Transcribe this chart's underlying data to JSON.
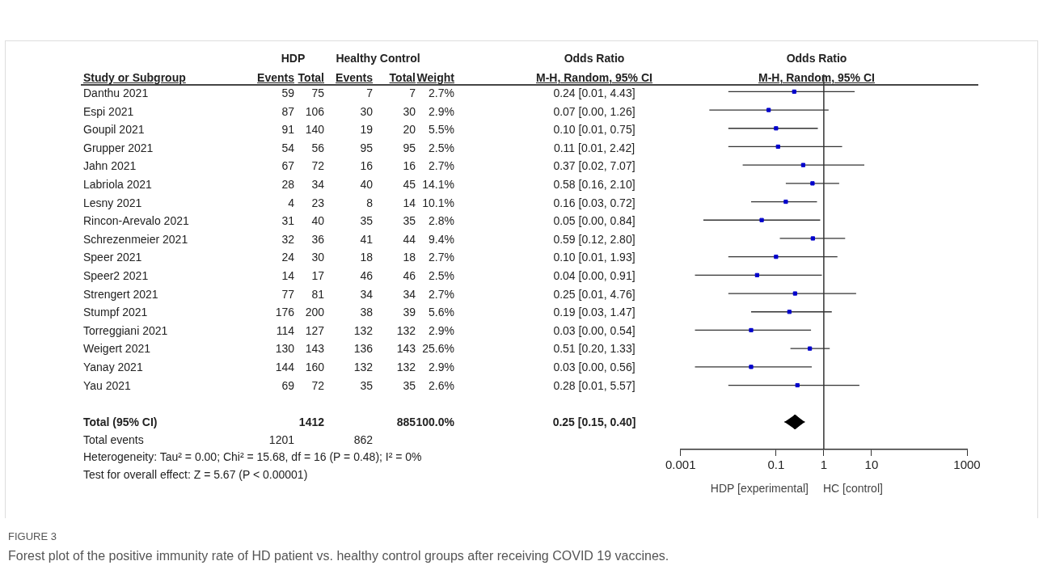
{
  "chart_data": [
    {
      "type": "other",
      "ylabel": "Study or Subgroup",
      "categories": [
        "Danthu 2021",
        "Espi 2021",
        "Goupil 2021",
        "Grupper 2021",
        "Jahn 2021",
        "Labriola 2021",
        "Lesny 2021",
        "Rincon-Arevalo 2021",
        "Schrezenmeier 2021",
        "Speer 2021",
        "Speer2 2021",
        "Strengert 2021",
        "Stumpf 2021",
        "Torreggiani 2021",
        "Weigert 2021",
        "Yanay 2021",
        "Yau 2021",
        null,
        "Total (95% CI)",
        "Total events"
      ],
      "data_labels": true,
      "series": [
        {
          "name": "Events",
          "values": [
            59,
            87,
            91,
            54,
            67,
            28,
            4,
            31,
            32,
            24,
            14,
            77,
            176,
            114,
            130,
            144,
            69,
            null,
            null,
            1201
          ]
        },
        {
          "name": "Total",
          "values": [
            75,
            106,
            140,
            56,
            72,
            34,
            23,
            40,
            36,
            30,
            17,
            81,
            200,
            127,
            143,
            160,
            72,
            null,
            1412,
            null
          ]
        },
        {
          "name": "Events",
          "values": [
            7,
            30,
            19,
            95,
            16,
            40,
            8,
            35,
            41,
            18,
            46,
            34,
            38,
            132,
            136,
            132,
            35,
            null,
            null,
            862
          ]
        },
        {
          "name": "Total",
          "values": [
            7,
            30,
            20,
            95,
            16,
            45,
            14,
            35,
            44,
            18,
            46,
            34,
            39,
            132,
            143,
            132,
            35,
            null,
            885,
            null
          ]
        },
        {
          "name": "Weight",
          "values": [
            2.7,
            2.9,
            5.5,
            2.5,
            2.7,
            14.1,
            10.1,
            2.8,
            9.4,
            2.7,
            2.5,
            2.7,
            5.6,
            2.9,
            25.6,
            2.9,
            2.6,
            null,
            100.0,
            null
          ],
          "value_labels": [
            "2.7%",
            "2.9%",
            "5.5%",
            "2.5%",
            "2.7%",
            "14.1%",
            "10.1%",
            "2.8%",
            "9.4%",
            "2.7%",
            "2.5%",
            "2.7%",
            "5.6%",
            "2.9%",
            "25.6%",
            "2.9%",
            "2.6%",
            null,
            "100.0%",
            null
          ]
        },
        {
          "name": "M-H, Random, 95% CI",
          "values": [
            0.24,
            0.07,
            0.1,
            0.11,
            0.37,
            0.58,
            0.16,
            0.05,
            0.59,
            0.1,
            0.04,
            0.25,
            0.19,
            0.03,
            0.51,
            0.03,
            0.28,
            null,
            0.25,
            null
          ],
          "value_labels": [
            "0.24 [0.01, 4.43]",
            "0.07 [0.00, 1.26]",
            "0.10 [0.01, 0.75]",
            "0.11 [0.01, 2.42]",
            "0.37 [0.02, 7.07]",
            "0.58 [0.16, 2.10]",
            "0.16 [0.03, 0.72]",
            "0.05 [0.00, 0.84]",
            "0.59 [0.12, 2.80]",
            "0.10 [0.01, 1.93]",
            "0.04 [0.00, 0.91]",
            "0.25 [0.01, 4.76]",
            "0.19 [0.03, 1.47]",
            "0.03 [0.00, 0.54]",
            "0.51 [0.20, 1.33]",
            "0.03 [0.00, 0.56]",
            "0.28 [0.01, 5.57]",
            null,
            "0.25 [0.15, 0.40]",
            null
          ]
        }
      ],
      "annotations": [
        "HDP",
        "Healthy Control",
        "Odds Ratio",
        "Heterogeneity: Tau² = 0.00; Chi² = 15.68, df = 16 (P = 0.48); I² = 0%",
        "Test for overall effect: Z = 5.67 (P < 0.00001)",
        "FIGURE 3",
        "Forest plot of the positive immunity rate of HD patient vs. healthy control groups after receiving COVID 19 vaccines."
      ]
    },
    {
      "type": "scatter",
      "orientation": "horizontal",
      "title": "Odds Ratio",
      "subtitle": "M-H, Random, 95% CI",
      "categories": [
        null,
        null,
        null,
        null,
        null,
        null,
        null,
        null,
        null,
        null,
        null,
        null,
        null,
        null,
        null,
        null,
        null,
        null,
        null,
        null
      ],
      "series": [
        {
          "color": "#0000cc",
          "marker": "square",
          "values": [
            0.24,
            0.07,
            0.1,
            0.11,
            0.37,
            0.58,
            0.16,
            0.05,
            0.59,
            0.1,
            0.04,
            0.25,
            0.19,
            0.03,
            0.51,
            0.03,
            0.28,
            null,
            null,
            null
          ],
          "errors": [
            [
              0.01,
              4.43
            ],
            [
              0.004,
              1.26
            ],
            [
              0.01,
              0.75
            ],
            [
              0.01,
              2.42
            ],
            [
              0.02,
              7.07
            ],
            [
              0.16,
              2.1
            ],
            [
              0.03,
              0.72
            ],
            [
              0.003,
              0.84
            ],
            [
              0.12,
              2.8
            ],
            [
              0.01,
              1.93
            ],
            [
              0.002,
              0.91
            ],
            [
              0.01,
              4.76
            ],
            [
              0.03,
              1.47
            ],
            [
              0.002,
              0.54
            ],
            [
              0.2,
              1.33
            ],
            [
              0.002,
              0.56
            ],
            [
              0.01,
              5.57
            ],
            null,
            null,
            null
          ]
        },
        {
          "color": "#000000",
          "marker": "diamond",
          "values": [
            null,
            null,
            null,
            null,
            null,
            null,
            null,
            null,
            null,
            null,
            null,
            null,
            null,
            null,
            null,
            null,
            null,
            null,
            0.25,
            null
          ],
          "errors": [
            null,
            null,
            null,
            null,
            null,
            null,
            null,
            null,
            null,
            null,
            null,
            null,
            null,
            null,
            null,
            null,
            null,
            null,
            [
              0.15,
              0.4
            ],
            null
          ]
        }
      ],
      "log": "x",
      "xlim": [
        0.001,
        1000
      ],
      "xticks": [
        0.001,
        0.1,
        1,
        10,
        1000
      ],
      "tick_labels": "x",
      "grid": false,
      "ref_lines": [
        {
          "axis": "x",
          "value": 1
        }
      ],
      "annotations": [
        "HDP [experimental]",
        "HC [control]"
      ]
    }
  ]
}
